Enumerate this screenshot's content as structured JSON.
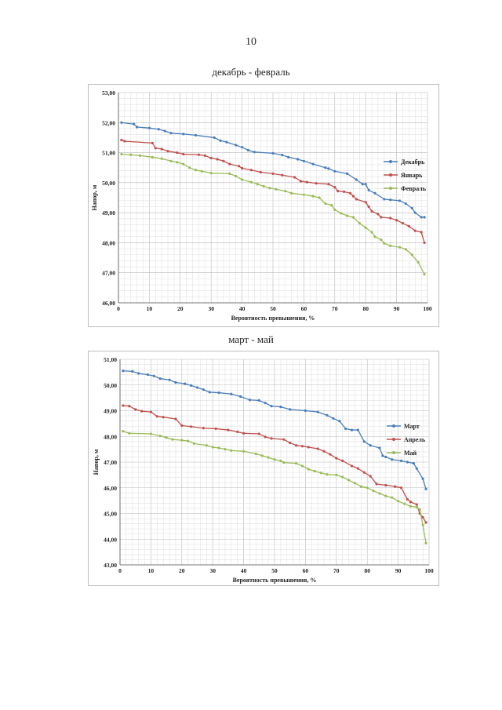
{
  "page": {
    "number": "10"
  },
  "chart_data": [
    {
      "type": "line",
      "title": "декабрь - февраль",
      "xlabel": "Вероятность превышения, %",
      "ylabel": "Напор, м",
      "xlim": [
        0,
        100
      ],
      "ylim": [
        46,
        53
      ],
      "x_ticks": [
        0,
        10,
        20,
        30,
        40,
        50,
        60,
        70,
        80,
        90,
        100
      ],
      "y_ticks": [
        46,
        47,
        48,
        49,
        50,
        51,
        52,
        53
      ],
      "y_tick_labels": [
        "46,00",
        "47,00",
        "48,00",
        "49,00",
        "50,00",
        "51,00",
        "52,00",
        "53,00"
      ],
      "legend_position": "right",
      "series": [
        {
          "name": "Декабрь",
          "color": "#4a7ebb",
          "points": [
            [
              1,
              52.0
            ],
            [
              5,
              51.95
            ],
            [
              6,
              51.85
            ],
            [
              10,
              51.82
            ],
            [
              13,
              51.78
            ],
            [
              15,
              51.72
            ],
            [
              17,
              51.65
            ],
            [
              21,
              51.62
            ],
            [
              25,
              51.58
            ],
            [
              31,
              51.5
            ],
            [
              33,
              51.4
            ],
            [
              35,
              51.35
            ],
            [
              38,
              51.25
            ],
            [
              40,
              51.18
            ],
            [
              42,
              51.08
            ],
            [
              44,
              51.02
            ],
            [
              50,
              50.98
            ],
            [
              53,
              50.92
            ],
            [
              55,
              50.85
            ],
            [
              58,
              50.78
            ],
            [
              60,
              50.72
            ],
            [
              63,
              50.62
            ],
            [
              67,
              50.5
            ],
            [
              68,
              50.47
            ],
            [
              70,
              50.38
            ],
            [
              74,
              50.3
            ],
            [
              77,
              50.1
            ],
            [
              79,
              49.95
            ],
            [
              80,
              49.95
            ],
            [
              81,
              49.75
            ],
            [
              83,
              49.65
            ],
            [
              86,
              49.45
            ],
            [
              88,
              49.43
            ],
            [
              91,
              49.4
            ],
            [
              93,
              49.3
            ],
            [
              95,
              49.15
            ],
            [
              96,
              49.0
            ],
            [
              98,
              48.85
            ],
            [
              99,
              48.85
            ]
          ]
        },
        {
          "name": "Январь",
          "color": "#c0504d",
          "points": [
            [
              1,
              51.42
            ],
            [
              2,
              51.38
            ],
            [
              11,
              51.32
            ],
            [
              12,
              51.15
            ],
            [
              14,
              51.12
            ],
            [
              16,
              51.05
            ],
            [
              19,
              51.0
            ],
            [
              21,
              50.95
            ],
            [
              26,
              50.93
            ],
            [
              28,
              50.9
            ],
            [
              30,
              50.82
            ],
            [
              32,
              50.78
            ],
            [
              34,
              50.72
            ],
            [
              36,
              50.62
            ],
            [
              39,
              50.55
            ],
            [
              40,
              50.48
            ],
            [
              43,
              50.42
            ],
            [
              46,
              50.35
            ],
            [
              50,
              50.3
            ],
            [
              53,
              50.25
            ],
            [
              57,
              50.18
            ],
            [
              59,
              50.05
            ],
            [
              61,
              50.02
            ],
            [
              64,
              49.98
            ],
            [
              68,
              49.95
            ],
            [
              70,
              49.85
            ],
            [
              71,
              49.72
            ],
            [
              73,
              49.7
            ],
            [
              75,
              49.65
            ],
            [
              76,
              49.55
            ],
            [
              77,
              49.45
            ],
            [
              80,
              49.35
            ],
            [
              81,
              49.2
            ],
            [
              82,
              49.05
            ],
            [
              84,
              48.95
            ],
            [
              85,
              48.85
            ],
            [
              88,
              48.82
            ],
            [
              90,
              48.75
            ],
            [
              92,
              48.65
            ],
            [
              94,
              48.55
            ],
            [
              96,
              48.4
            ],
            [
              98,
              48.35
            ],
            [
              99,
              48.0
            ]
          ]
        },
        {
          "name": "Февраль",
          "color": "#9bbb59",
          "points": [
            [
              1,
              50.95
            ],
            [
              4,
              50.93
            ],
            [
              7,
              50.9
            ],
            [
              11,
              50.85
            ],
            [
              14,
              50.8
            ],
            [
              17,
              50.72
            ],
            [
              19,
              50.68
            ],
            [
              21,
              50.62
            ],
            [
              23,
              50.5
            ],
            [
              25,
              50.42
            ],
            [
              27,
              50.38
            ],
            [
              30,
              50.32
            ],
            [
              36,
              50.3
            ],
            [
              38,
              50.22
            ],
            [
              40,
              50.1
            ],
            [
              43,
              50.02
            ],
            [
              45,
              49.95
            ],
            [
              47,
              49.88
            ],
            [
              49,
              49.82
            ],
            [
              51,
              49.78
            ],
            [
              54,
              49.72
            ],
            [
              56,
              49.65
            ],
            [
              60,
              49.6
            ],
            [
              63,
              49.55
            ],
            [
              65,
              49.5
            ],
            [
              67,
              49.3
            ],
            [
              69,
              49.25
            ],
            [
              70,
              49.1
            ],
            [
              72,
              48.98
            ],
            [
              74,
              48.9
            ],
            [
              76,
              48.85
            ],
            [
              78,
              48.65
            ],
            [
              80,
              48.5
            ],
            [
              82,
              48.35
            ],
            [
              83,
              48.2
            ],
            [
              85,
              48.1
            ],
            [
              86,
              47.98
            ],
            [
              88,
              47.9
            ],
            [
              91,
              47.85
            ],
            [
              93,
              47.78
            ],
            [
              95,
              47.6
            ],
            [
              97,
              47.35
            ],
            [
              99,
              46.95
            ]
          ]
        }
      ]
    },
    {
      "type": "line",
      "title": "март - май",
      "xlabel": "Вероятность превышения, %",
      "ylabel": "Напор, м",
      "xlim": [
        0,
        100
      ],
      "ylim": [
        43,
        51
      ],
      "x_ticks": [
        0,
        10,
        20,
        30,
        40,
        50,
        60,
        70,
        80,
        90,
        100
      ],
      "y_ticks": [
        43,
        44,
        45,
        46,
        47,
        48,
        49,
        50,
        51
      ],
      "y_tick_labels": [
        "43,00",
        "44,00",
        "45,00",
        "46,00",
        "47,00",
        "48,00",
        "49,00",
        "50,00",
        "51,00"
      ],
      "legend_position": "right",
      "series": [
        {
          "name": "Март",
          "color": "#4a7ebb",
          "points": [
            [
              1,
              50.55
            ],
            [
              4,
              50.53
            ],
            [
              6,
              50.45
            ],
            [
              9,
              50.4
            ],
            [
              11,
              50.35
            ],
            [
              13,
              50.25
            ],
            [
              16,
              50.2
            ],
            [
              18,
              50.1
            ],
            [
              21,
              50.05
            ],
            [
              23,
              49.98
            ],
            [
              25,
              49.9
            ],
            [
              27,
              49.82
            ],
            [
              29,
              49.72
            ],
            [
              32,
              49.7
            ],
            [
              36,
              49.65
            ],
            [
              39,
              49.55
            ],
            [
              42,
              49.42
            ],
            [
              45,
              49.4
            ],
            [
              47,
              49.3
            ],
            [
              49,
              49.18
            ],
            [
              52,
              49.15
            ],
            [
              55,
              49.05
            ],
            [
              60,
              49.0
            ],
            [
              64,
              48.95
            ],
            [
              67,
              48.82
            ],
            [
              69,
              48.7
            ],
            [
              71,
              48.6
            ],
            [
              73,
              48.3
            ],
            [
              75,
              48.25
            ],
            [
              77,
              48.25
            ],
            [
              79,
              47.8
            ],
            [
              81,
              47.65
            ],
            [
              84,
              47.55
            ],
            [
              85,
              47.25
            ],
            [
              86,
              47.2
            ],
            [
              88,
              47.1
            ],
            [
              91,
              47.05
            ],
            [
              93,
              47.0
            ],
            [
              95,
              46.95
            ],
            [
              96,
              46.75
            ],
            [
              98,
              46.35
            ],
            [
              99,
              45.95
            ]
          ]
        },
        {
          "name": "Апрель",
          "color": "#c0504d",
          "points": [
            [
              1,
              49.2
            ],
            [
              3,
              49.18
            ],
            [
              5,
              49.05
            ],
            [
              7,
              48.98
            ],
            [
              10,
              48.95
            ],
            [
              12,
              48.78
            ],
            [
              14,
              48.75
            ],
            [
              18,
              48.68
            ],
            [
              20,
              48.42
            ],
            [
              23,
              48.38
            ],
            [
              27,
              48.32
            ],
            [
              31,
              48.3
            ],
            [
              35,
              48.25
            ],
            [
              38,
              48.18
            ],
            [
              40,
              48.12
            ],
            [
              45,
              48.1
            ],
            [
              47,
              47.98
            ],
            [
              49,
              47.92
            ],
            [
              53,
              47.88
            ],
            [
              55,
              47.75
            ],
            [
              57,
              47.65
            ],
            [
              59,
              47.62
            ],
            [
              61,
              47.58
            ],
            [
              64,
              47.52
            ],
            [
              66,
              47.42
            ],
            [
              68,
              47.3
            ],
            [
              70,
              47.15
            ],
            [
              72,
              47.05
            ],
            [
              75,
              46.85
            ],
            [
              77,
              46.75
            ],
            [
              79,
              46.6
            ],
            [
              81,
              46.45
            ],
            [
              83,
              46.15
            ],
            [
              86,
              46.1
            ],
            [
              89,
              46.05
            ],
            [
              91,
              46.0
            ],
            [
              93,
              45.55
            ],
            [
              94,
              45.45
            ],
            [
              96,
              45.35
            ],
            [
              97,
              45.0
            ],
            [
              98,
              44.85
            ],
            [
              99,
              44.65
            ]
          ]
        },
        {
          "name": "Май",
          "color": "#9bbb59",
          "points": [
            [
              1,
              48.2
            ],
            [
              3,
              48.12
            ],
            [
              10,
              48.1
            ],
            [
              13,
              48.02
            ],
            [
              15,
              47.95
            ],
            [
              17,
              47.88
            ],
            [
              20,
              47.85
            ],
            [
              22,
              47.82
            ],
            [
              24,
              47.72
            ],
            [
              28,
              47.65
            ],
            [
              30,
              47.58
            ],
            [
              32,
              47.55
            ],
            [
              34,
              47.5
            ],
            [
              36,
              47.45
            ],
            [
              40,
              47.42
            ],
            [
              44,
              47.32
            ],
            [
              46,
              47.25
            ],
            [
              48,
              47.18
            ],
            [
              50,
              47.1
            ],
            [
              52,
              47.05
            ],
            [
              53,
              46.98
            ],
            [
              57,
              46.95
            ],
            [
              59,
              46.85
            ],
            [
              61,
              46.72
            ],
            [
              63,
              46.65
            ],
            [
              65,
              46.58
            ],
            [
              67,
              46.52
            ],
            [
              70,
              46.5
            ],
            [
              72,
              46.42
            ],
            [
              74,
              46.3
            ],
            [
              76,
              46.18
            ],
            [
              78,
              46.05
            ],
            [
              80,
              46.0
            ],
            [
              82,
              45.88
            ],
            [
              84,
              45.78
            ],
            [
              86,
              45.68
            ],
            [
              88,
              45.62
            ],
            [
              90,
              45.48
            ],
            [
              92,
              45.38
            ],
            [
              94,
              45.28
            ],
            [
              96,
              45.25
            ],
            [
              97,
              45.15
            ],
            [
              98,
              44.55
            ],
            [
              99,
              43.85
            ]
          ]
        }
      ]
    }
  ]
}
